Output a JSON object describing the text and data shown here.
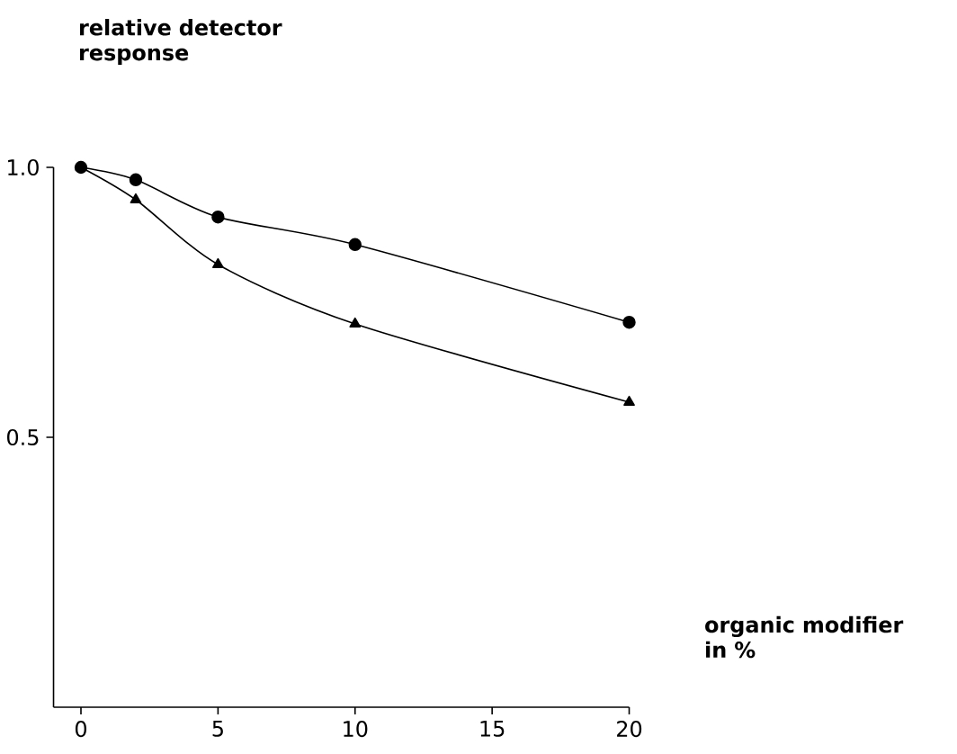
{
  "chart_data": {
    "type": "line",
    "xlabel": "organic modifier in %",
    "ylabel": "relative detector response",
    "xlim": [
      -1,
      20
    ],
    "ylim": [
      0,
      1.0
    ],
    "xticks": [
      0,
      5,
      10,
      15,
      20
    ],
    "yticks": [
      {
        "value": 0.5,
        "label": "0.5"
      },
      {
        "value": 1.0,
        "label": "1.0"
      }
    ],
    "grid": false,
    "series": [
      {
        "marker": "circle",
        "line_style": "solid",
        "color": "#000000",
        "x": [
          0,
          2,
          5,
          10,
          20
        ],
        "values": [
          1.0,
          0.977,
          0.908,
          0.857,
          0.713
        ]
      },
      {
        "marker": "triangle",
        "line_style": "solid",
        "color": "#000000",
        "x": [
          0,
          2,
          5,
          10,
          20
        ],
        "values": [
          1.0,
          0.94,
          0.82,
          0.71,
          0.565
        ]
      }
    ]
  }
}
